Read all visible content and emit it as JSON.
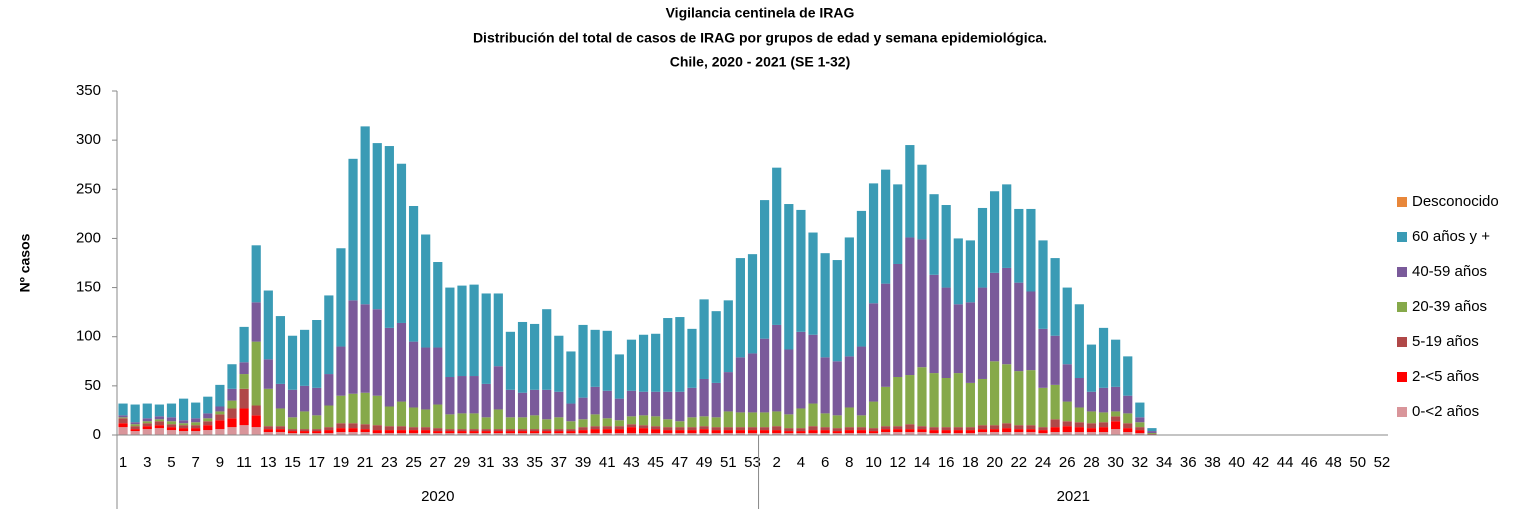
{
  "chart_data": {
    "type": "stacked_bar",
    "title": [
      "Vigilancia centinela de IRAG",
      "Distribución del total de casos de IRAG por  grupos de edad y semana epidemiológica.",
      "Chile, 2020 - 2021 (SE 1-32)"
    ],
    "ylabel": "Nº casos",
    "ylim": [
      0,
      350
    ],
    "yticks": [
      0,
      50,
      100,
      150,
      200,
      250,
      300,
      350
    ],
    "legend": "right",
    "groups": [
      {
        "label": "2020",
        "categories": [
          "1",
          null,
          "3",
          null,
          "5",
          null,
          "7",
          null,
          "9",
          null,
          "11",
          null,
          "13",
          null,
          "15",
          null,
          "17",
          null,
          "19",
          null,
          "21",
          null,
          "23",
          null,
          "25",
          null,
          "27",
          null,
          "29",
          null,
          "31",
          null,
          "33",
          null,
          "35",
          null,
          "37",
          null,
          "39",
          null,
          "41",
          null,
          "43",
          null,
          "45",
          null,
          "47",
          null,
          "49",
          null,
          "51",
          null,
          "53"
        ]
      },
      {
        "label": "2021",
        "categories": [
          null,
          "2",
          null,
          "4",
          null,
          "6",
          null,
          "8",
          null,
          "10",
          null,
          "12",
          null,
          "14",
          null,
          "16",
          null,
          "18",
          null,
          "20",
          null,
          "22",
          null,
          "24",
          null,
          "26",
          null,
          "28",
          null,
          "30",
          null,
          "32",
          null,
          "34",
          null,
          "36",
          null,
          "38",
          null,
          "40",
          null,
          "42",
          null,
          "44",
          null,
          "46",
          null,
          "48",
          null,
          "50",
          null,
          "52"
        ]
      }
    ],
    "series": [
      {
        "name": "0-<2 años",
        "color": "#d9959a",
        "values": [
          8,
          4,
          6,
          7,
          5,
          4,
          4,
          5,
          6,
          8,
          10,
          8,
          3,
          3,
          2,
          2,
          2,
          2,
          3,
          3,
          3,
          2,
          2,
          2,
          2,
          2,
          2,
          2,
          2,
          2,
          2,
          2,
          2,
          2,
          2,
          2,
          2,
          2,
          2,
          2,
          2,
          2,
          2,
          2,
          2,
          2,
          2,
          2,
          2,
          2,
          2,
          2,
          2,
          2,
          2,
          2,
          2,
          2,
          2,
          2,
          2,
          2,
          2,
          3,
          3,
          3,
          3,
          2,
          2,
          2,
          2,
          3,
          3,
          3,
          3,
          3,
          2,
          3,
          3,
          3,
          3,
          3,
          6,
          3,
          2,
          0,
          0,
          0,
          0,
          0,
          0,
          0,
          0,
          0,
          0,
          0,
          0,
          0,
          0,
          0,
          0,
          0,
          0,
          0,
          0
        ]
      },
      {
        "name": "2-<5 años",
        "color": "#ff0000",
        "values": [
          4,
          2,
          3,
          3,
          3,
          3,
          3,
          5,
          9,
          9,
          17,
          12,
          3,
          3,
          2,
          2,
          2,
          3,
          4,
          4,
          3,
          3,
          3,
          3,
          3,
          3,
          2,
          2,
          2,
          2,
          2,
          2,
          2,
          2,
          2,
          2,
          2,
          2,
          3,
          4,
          4,
          4,
          6,
          5,
          4,
          3,
          3,
          3,
          4,
          3,
          3,
          3,
          3,
          3,
          3,
          2,
          2,
          3,
          3,
          2,
          3,
          3,
          2,
          3,
          3,
          3,
          3,
          3,
          3,
          3,
          3,
          3,
          3,
          4,
          3,
          3,
          3,
          5,
          6,
          5,
          4,
          5,
          8,
          4,
          3,
          0,
          0,
          0,
          0,
          0,
          0,
          0,
          0,
          0,
          0,
          0,
          0,
          0,
          0,
          0,
          0,
          0,
          0,
          0,
          0
        ]
      },
      {
        "name": "5-19 años",
        "color": "#b04848",
        "values": [
          5,
          3,
          3,
          4,
          3,
          3,
          3,
          4,
          6,
          10,
          20,
          10,
          3,
          3,
          2,
          2,
          2,
          3,
          5,
          5,
          5,
          5,
          4,
          4,
          3,
          3,
          3,
          2,
          2,
          2,
          2,
          2,
          2,
          2,
          2,
          2,
          2,
          2,
          3,
          3,
          3,
          3,
          3,
          3,
          3,
          3,
          3,
          3,
          3,
          3,
          3,
          3,
          3,
          3,
          4,
          3,
          3,
          4,
          3,
          3,
          3,
          3,
          3,
          3,
          3,
          5,
          3,
          3,
          3,
          3,
          3,
          4,
          4,
          5,
          4,
          4,
          3,
          8,
          5,
          5,
          5,
          5,
          5,
          5,
          3,
          1,
          0,
          0,
          0,
          0,
          0,
          0,
          0,
          0,
          0,
          0,
          0,
          0,
          0,
          0,
          0,
          0,
          0,
          0,
          0
        ]
      },
      {
        "name": "20-39 años",
        "color": "#86a94a",
        "values": [
          1,
          2,
          2,
          2,
          3,
          2,
          3,
          3,
          3,
          8,
          15,
          65,
          38,
          18,
          12,
          18,
          14,
          22,
          28,
          30,
          32,
          30,
          20,
          25,
          20,
          18,
          24,
          15,
          16,
          16,
          12,
          20,
          12,
          12,
          14,
          10,
          12,
          8,
          8,
          12,
          8,
          6,
          8,
          10,
          10,
          8,
          6,
          10,
          10,
          10,
          16,
          15,
          15,
          15,
          15,
          14,
          20,
          23,
          14,
          13,
          20,
          12,
          27,
          40,
          50,
          50,
          60,
          55,
          50,
          55,
          45,
          47,
          65,
          60,
          55,
          56,
          40,
          35,
          20,
          15,
          12,
          10,
          5,
          10,
          5,
          1,
          0,
          0,
          0,
          0,
          0,
          0,
          0,
          0,
          0,
          0,
          0,
          0,
          0,
          0,
          0,
          0,
          0,
          0,
          0
        ]
      },
      {
        "name": "40-59 años",
        "color": "#7a5a9a",
        "values": [
          2,
          2,
          3,
          3,
          4,
          3,
          4,
          5,
          5,
          12,
          12,
          40,
          30,
          25,
          28,
          26,
          28,
          32,
          50,
          95,
          90,
          88,
          80,
          80,
          67,
          63,
          58,
          38,
          38,
          38,
          34,
          44,
          28,
          25,
          26,
          30,
          26,
          18,
          22,
          28,
          28,
          22,
          26,
          24,
          25,
          28,
          30,
          30,
          38,
          35,
          40,
          56,
          60,
          75,
          88,
          66,
          78,
          70,
          57,
          55,
          52,
          70,
          100,
          105,
          115,
          140,
          130,
          100,
          92,
          70,
          82,
          93,
          90,
          98,
          90,
          80,
          60,
          50,
          38,
          30,
          20,
          25,
          25,
          18,
          5,
          2,
          0,
          0,
          0,
          0,
          0,
          0,
          0,
          0,
          0,
          0,
          0,
          0,
          0,
          0,
          0,
          0,
          0,
          0,
          0
        ]
      },
      {
        "name": "60 años y +",
        "color": "#3a9bb5",
        "values": [
          12,
          18,
          15,
          12,
          14,
          22,
          16,
          17,
          22,
          25,
          36,
          58,
          70,
          69,
          55,
          57,
          69,
          80,
          100,
          144,
          181,
          169,
          185,
          162,
          138,
          115,
          87,
          91,
          92,
          93,
          92,
          74,
          59,
          72,
          67,
          82,
          57,
          53,
          74,
          58,
          61,
          45,
          52,
          58,
          59,
          75,
          76,
          60,
          81,
          73,
          73,
          101,
          101,
          141,
          160,
          148,
          124,
          104,
          106,
          103,
          121,
          138,
          122,
          116,
          81,
          94,
          76,
          82,
          84,
          67,
          63,
          81,
          83,
          85,
          75,
          84,
          90,
          79,
          78,
          75,
          48,
          61,
          48,
          40,
          15,
          3,
          0,
          0,
          0,
          0,
          0,
          0,
          0,
          0,
          0,
          0,
          0,
          0,
          0,
          0,
          0,
          0,
          0,
          0,
          0
        ]
      },
      {
        "name": "Desconocido",
        "color": "#e8873a",
        "values": [
          0,
          0,
          0,
          0,
          0,
          0,
          0,
          0,
          0,
          0,
          0,
          0,
          0,
          0,
          0,
          0,
          0,
          0,
          0,
          0,
          0,
          0,
          0,
          0,
          0,
          0,
          0,
          0,
          0,
          0,
          0,
          0,
          0,
          0,
          0,
          0,
          0,
          0,
          0,
          0,
          0,
          0,
          0,
          0,
          0,
          0,
          0,
          0,
          0,
          0,
          0,
          0,
          0,
          0,
          0,
          0,
          0,
          0,
          0,
          0,
          0,
          0,
          0,
          0,
          0,
          0,
          0,
          0,
          0,
          0,
          0,
          0,
          0,
          0,
          0,
          0,
          0,
          0,
          0,
          0,
          0,
          0,
          0,
          0,
          0,
          0,
          0,
          0,
          0,
          0,
          0,
          0,
          0,
          0,
          0,
          0,
          0,
          0,
          0,
          0,
          0,
          0,
          0,
          0,
          0
        ]
      }
    ]
  }
}
